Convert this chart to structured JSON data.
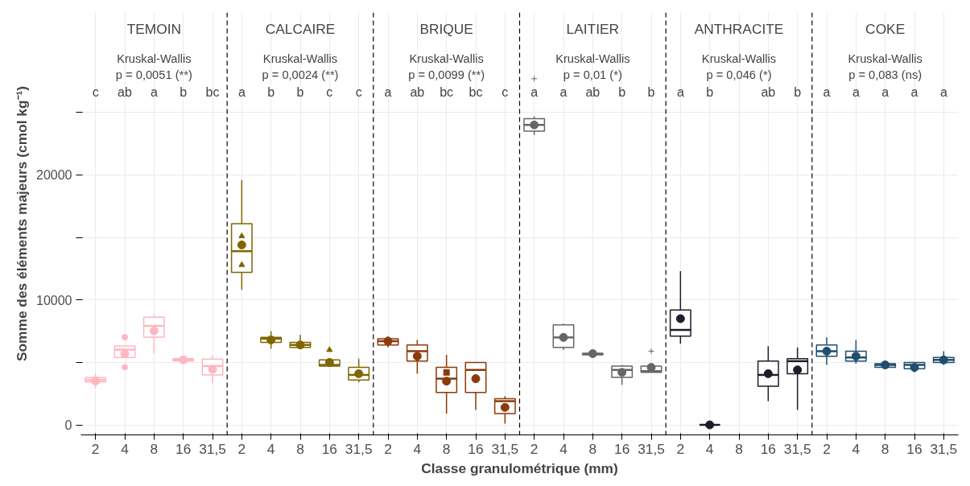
{
  "chart_data": {
    "type": "box",
    "xlabel": "Classe granulométrique (mm)",
    "ylabel": "Somme des éléments majeurs (cmol kg⁻¹)",
    "categories": [
      "2",
      "4",
      "8",
      "16",
      "31,5",
      "2",
      "4",
      "8",
      "16",
      "31,5",
      "2",
      "4",
      "8",
      "16",
      "31,5",
      "2",
      "4",
      "8",
      "16",
      "31,5",
      "2",
      "4",
      "8",
      "16",
      "31,5",
      "2",
      "4",
      "8",
      "16",
      "31,5"
    ],
    "ylim": [
      -800,
      33000
    ],
    "yticks": [
      0,
      {
        "value": 5000,
        "label": null
      },
      10000,
      {
        "value": 15000,
        "label": null
      },
      20000,
      {
        "value": 25000,
        "label": null
      }
    ],
    "grid": true,
    "series": [
      {
        "color": "#ffb6c1",
        "marker": "circle",
        "boxes": [
          {
            "low": 2950,
            "q1": 3430,
            "median": 3600,
            "q3": 3780,
            "high": 4070,
            "mean": 3520
          },
          {
            "low": 5390,
            "q1": 5390,
            "median": 6020,
            "q3": 6310,
            "high": 6310,
            "mean": 5690,
            "outliers": [
              7020,
              4620
            ]
          },
          {
            "low": 5700,
            "q1": 7020,
            "median": 7920,
            "q3": 8620,
            "high": 8840,
            "mean": 7520
          },
          {
            "low": 5130,
            "q1": 5130,
            "median": 5210,
            "q3": 5300,
            "high": 5300,
            "mean": 5210
          },
          {
            "low": 3340,
            "q1": 4000,
            "median": 4710,
            "q3": 5260,
            "high": 5540,
            "mean": 4440
          },
          null,
          null,
          null,
          null,
          null,
          null,
          null,
          null,
          null,
          null,
          null,
          null,
          null,
          null,
          null,
          null,
          null,
          null,
          null,
          null,
          null,
          null,
          null,
          null,
          null
        ]
      },
      {
        "color": "#806600",
        "marker": "triangle",
        "boxes": [
          null,
          null,
          null,
          null,
          null,
          {
            "low": 10800,
            "q1": 12200,
            "median": 13900,
            "q3": 16100,
            "high": 19600,
            "mean": 14400
          },
          {
            "low": 6100,
            "q1": 6600,
            "median": 6900,
            "q3": 7000,
            "high": 7500,
            "mean": 6800
          },
          {
            "low": 6200,
            "q1": 6200,
            "median": 6400,
            "q3": 6600,
            "high": 7200,
            "mean": 6400
          },
          {
            "low": 4700,
            "q1": 4700,
            "median": 4800,
            "q3": 5200,
            "high": 5200,
            "mean": 5000,
            "outliers": [
              6000
            ]
          },
          {
            "low": 3400,
            "q1": 3600,
            "median": 4000,
            "q3": 4600,
            "high": 5300,
            "mean": 4100
          },
          null,
          null,
          null,
          null,
          null,
          null,
          null,
          null,
          null,
          null,
          null,
          null,
          null,
          null,
          null,
          null,
          null,
          null,
          null,
          null
        ]
      },
      {
        "color": "#8b3a0a",
        "marker": "square",
        "boxes": [
          null,
          null,
          null,
          null,
          null,
          null,
          null,
          null,
          null,
          null,
          {
            "low": 6200,
            "q1": 6400,
            "median": 6700,
            "q3": 6900,
            "high": 7100,
            "mean": 6700
          },
          {
            "low": 4100,
            "q1": 5100,
            "median": 5900,
            "q3": 6400,
            "high": 6800,
            "mean": 5500
          },
          {
            "low": 900,
            "q1": 2600,
            "median": 3700,
            "q3": 4600,
            "high": 5600,
            "mean": 3500
          },
          {
            "low": 1200,
            "q1": 2600,
            "median": 4400,
            "q3": 5000,
            "high": 5000,
            "mean": 3700
          },
          {
            "low": 100,
            "q1": 900,
            "median": 1900,
            "q3": 2100,
            "high": 2300,
            "mean": 1400
          },
          null,
          null,
          null,
          null,
          null,
          null,
          null,
          null,
          null,
          null,
          null,
          null,
          null,
          null,
          null
        ]
      },
      {
        "color": "#666666",
        "marker": "cross",
        "boxes": [
          null,
          null,
          null,
          null,
          null,
          null,
          null,
          null,
          null,
          null,
          null,
          null,
          null,
          null,
          null,
          {
            "low": 23200,
            "q1": 23500,
            "median": 24000,
            "q3": 24500,
            "high": 24700,
            "mean": 24000,
            "outliers": [
              27700
            ]
          },
          {
            "low": 6000,
            "q1": 6200,
            "median": 7000,
            "q3": 8000,
            "high": 8100,
            "mean": 7000
          },
          {
            "low": 5600,
            "q1": 5600,
            "median": 5700,
            "q3": 5700,
            "high": 5800,
            "mean": 5700
          },
          {
            "low": 3200,
            "q1": 3800,
            "median": 4400,
            "q3": 4700,
            "high": 4800,
            "mean": 4200
          },
          {
            "low": 4200,
            "q1": 4200,
            "median": 4300,
            "q3": 4700,
            "high": 4700,
            "mean": 4600,
            "outliers": [
              5900
            ]
          },
          null,
          null,
          null,
          null,
          null,
          null,
          null,
          null,
          null,
          null
        ]
      },
      {
        "color": "#1c1c2c",
        "marker": "square",
        "boxes": [
          null,
          null,
          null,
          null,
          null,
          null,
          null,
          null,
          null,
          null,
          null,
          null,
          null,
          null,
          null,
          null,
          null,
          null,
          null,
          null,
          {
            "low": 6500,
            "q1": 7100,
            "median": 7600,
            "q3": 9200,
            "high": 12300,
            "mean": 8500
          },
          {
            "low": 0,
            "q1": 0,
            "median": 0,
            "q3": 0,
            "high": 0,
            "mean": 0
          },
          null,
          {
            "low": 1900,
            "q1": 3100,
            "median": 4000,
            "q3": 5100,
            "high": 6300,
            "mean": 4100
          },
          {
            "low": 1200,
            "q1": 4100,
            "median": 5100,
            "q3": 5300,
            "high": 6200,
            "mean": 4400
          },
          null,
          null,
          null,
          null,
          null
        ]
      },
      {
        "color": "#1f4e6e",
        "marker": "star",
        "boxes": [
          null,
          null,
          null,
          null,
          null,
          null,
          null,
          null,
          null,
          null,
          null,
          null,
          null,
          null,
          null,
          null,
          null,
          null,
          null,
          null,
          null,
          null,
          null,
          null,
          null,
          {
            "low": 4800,
            "q1": 5500,
            "median": 5900,
            "q3": 6400,
            "high": 7000,
            "mean": 5900
          },
          {
            "low": 4900,
            "q1": 5100,
            "median": 5400,
            "q3": 5900,
            "high": 6800,
            "mean": 5500
          },
          {
            "low": 4600,
            "q1": 4600,
            "median": 4800,
            "q3": 4900,
            "high": 5000,
            "mean": 4800
          },
          {
            "low": 4200,
            "q1": 4500,
            "median": 4800,
            "q3": 5000,
            "high": 5000,
            "mean": 4600
          },
          {
            "low": 4800,
            "q1": 5000,
            "median": 5200,
            "q3": 5400,
            "high": 5900,
            "mean": 5200
          }
        ]
      },
      {
        "type": "scatter",
        "color": "#806600",
        "marker": "triangle",
        "values": [
          null,
          null,
          null,
          null,
          null,
          15100,
          null,
          null,
          null,
          null,
          null,
          null,
          null,
          null,
          null,
          null,
          null,
          null,
          null,
          null,
          null,
          null,
          null,
          null,
          null,
          null,
          null,
          null,
          null,
          null
        ]
      },
      {
        "type": "scatter",
        "color": "#806600",
        "marker": "triangle",
        "values": [
          null,
          null,
          null,
          null,
          null,
          12800,
          null,
          null,
          null,
          null,
          null,
          null,
          null,
          null,
          null,
          null,
          null,
          null,
          null,
          null,
          null,
          null,
          null,
          null,
          null,
          null,
          null,
          null,
          null,
          null
        ]
      },
      {
        "type": "scatter",
        "color": "#8b3a0a",
        "marker": "square",
        "values": [
          null,
          null,
          null,
          null,
          null,
          null,
          null,
          null,
          null,
          null,
          null,
          null,
          4200,
          null,
          null,
          null,
          null,
          null,
          null,
          null,
          null,
          null,
          null,
          null,
          null,
          null,
          null,
          null,
          null,
          null
        ]
      }
    ],
    "annotations": [
      "c",
      "ab",
      "a",
      "b",
      "bc",
      "a",
      "b",
      "b",
      "c",
      "c",
      "a",
      "ab",
      "bc",
      "bc",
      "c",
      "a",
      "a",
      "ab",
      "b",
      "b",
      "a",
      "b",
      null,
      "ab",
      "b",
      "a",
      "a",
      "a",
      "a",
      "a",
      "Kruskal-Wallis\np = 0,0051 (**)",
      "Kruskal-Wallis\np = 0,0024 (**)",
      "Kruskal-Wallis\np = 0,0099 (**)",
      "Kruskal-Wallis\np = 0,01 (*)",
      "Kruskal-Wallis\np = 0,046 (*)",
      "Kruskal-Wallis\np = 0,083 (ns)",
      "TEMOIN",
      "CALCAIRE",
      "BRIQUE",
      "LAITIER",
      "ANTHRACITE",
      "COKE"
    ]
  }
}
